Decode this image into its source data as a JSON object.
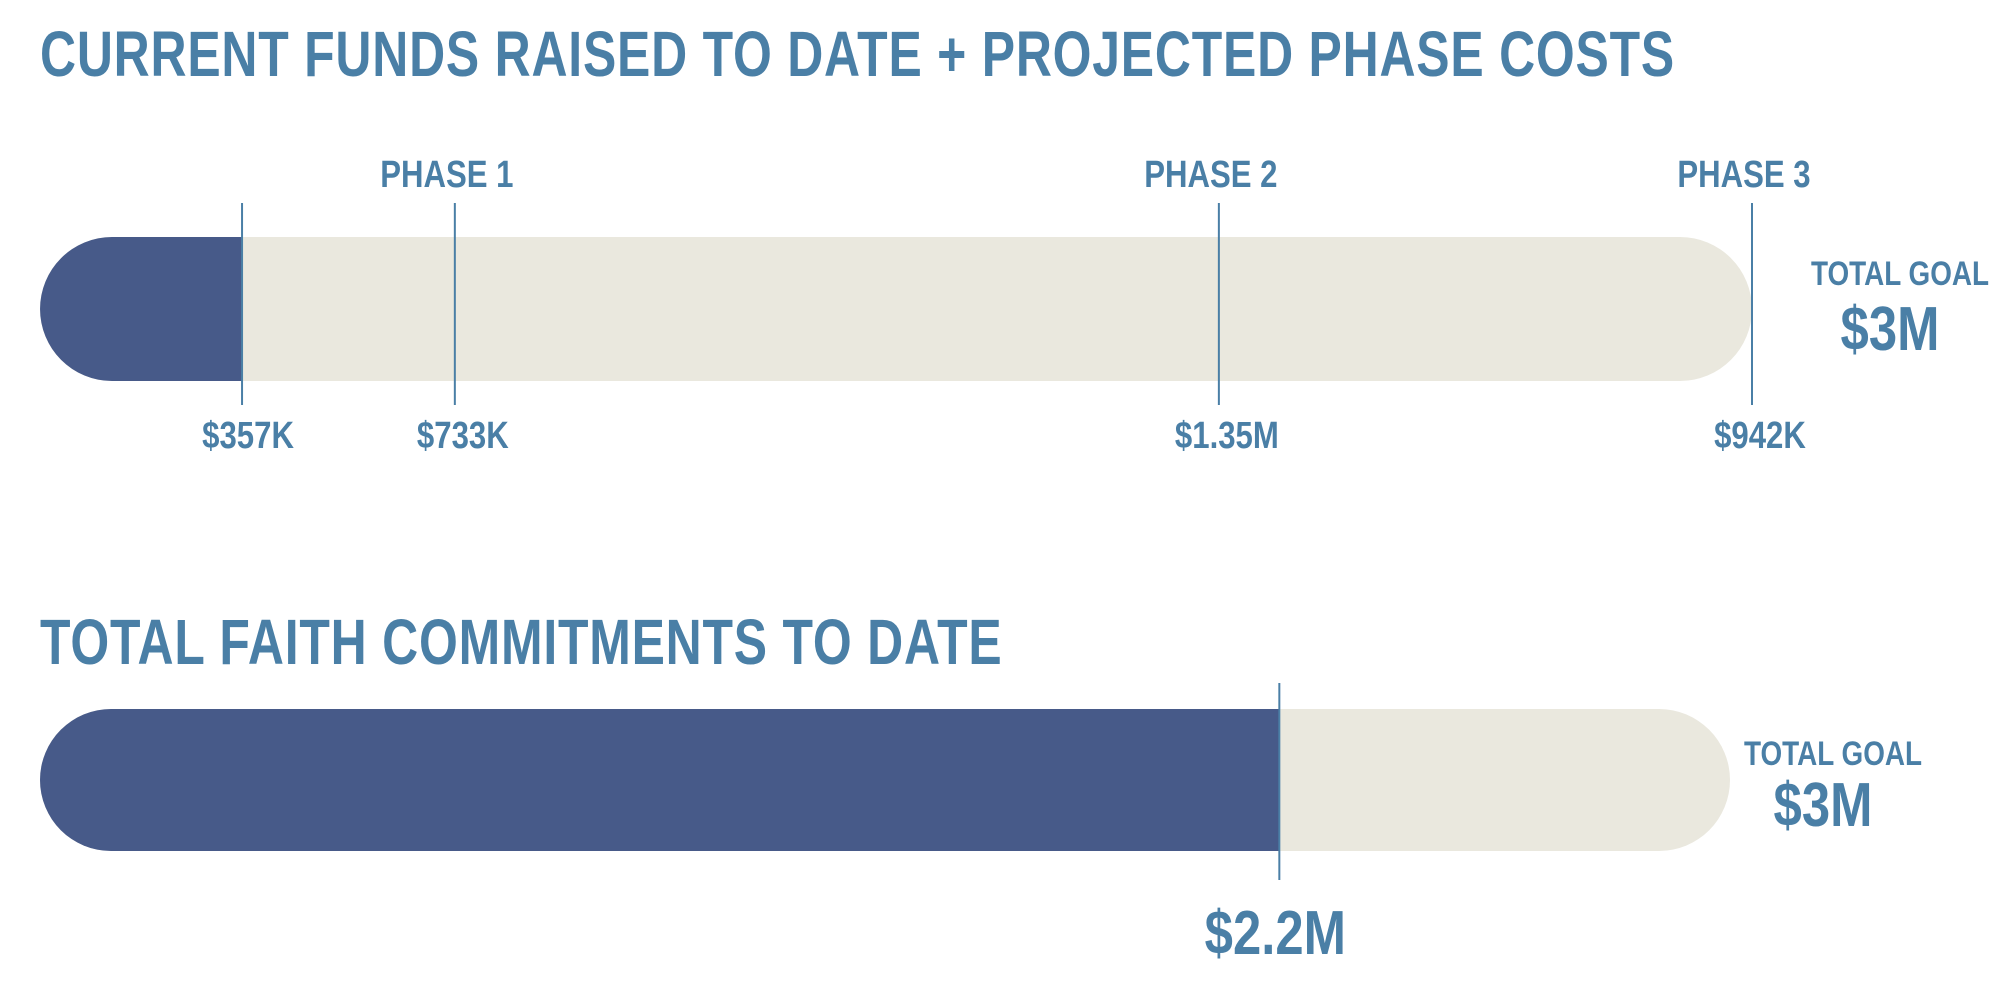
{
  "colors": {
    "raised": "#475a89",
    "track": "#eae8de",
    "text": "#4a7fa6",
    "marker": "#4a7fa6"
  },
  "chart_data": [
    {
      "type": "bar",
      "title": "CURRENT FUNDS RAISED TO DATE + PROJECTED PHASE COSTS",
      "raised": {
        "value": 357000,
        "label": "$357K"
      },
      "phases": [
        {
          "name": "PHASE 1",
          "cost": 733000,
          "cumulative": 733000,
          "label": "$733K"
        },
        {
          "name": "PHASE 2",
          "cost": 1350000,
          "cumulative": 2083000,
          "label": "$1.35M"
        },
        {
          "name": "PHASE 3",
          "cost": 942000,
          "cumulative": 3025000,
          "label": "$942K"
        }
      ],
      "goal": {
        "value": 3000000,
        "caption": "TOTAL GOAL",
        "label": "$3M"
      },
      "xlim": [
        0,
        3025000
      ]
    },
    {
      "type": "bar",
      "title": "TOTAL FAITH COMMITMENTS TO DATE",
      "raised": {
        "value": 2200000,
        "label": "$2.2M"
      },
      "goal": {
        "value": 3000000,
        "caption": "TOTAL GOAL",
        "label": "$3M"
      },
      "xlim": [
        0,
        3000000
      ]
    }
  ]
}
